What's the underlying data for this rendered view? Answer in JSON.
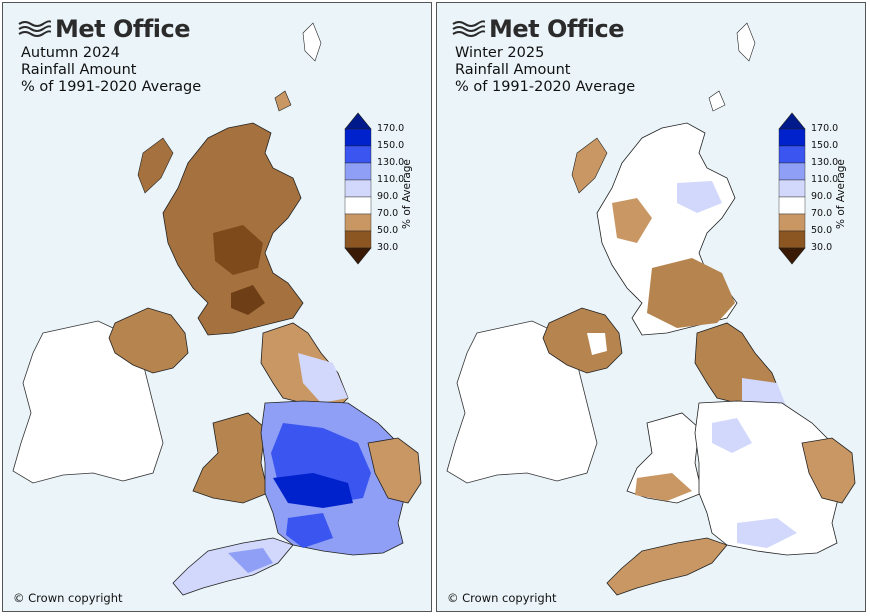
{
  "brand": {
    "name": "Met Office",
    "logo_icon": "met-office-waves-icon"
  },
  "panels": [
    {
      "season": "Autumn 2024",
      "variable": "Rainfall Amount",
      "baseline": "% of 1991-2020 Average"
    },
    {
      "season": "Winter 2025",
      "variable": "Rainfall Amount",
      "baseline": "% of 1991-2020 Average"
    }
  ],
  "legend": {
    "label": "% of Average",
    "ticks": [
      "170.0",
      "150.0",
      "130.0",
      "110.0",
      "90.0",
      "70.0",
      "50.0",
      "30.0"
    ],
    "colors": [
      "#0022cc",
      "#3a55f0",
      "#8f9ff5",
      "#d2d8fb",
      "#ffffff",
      "#c99764",
      "#8c5622",
      "#4a2508"
    ],
    "extend_high_color": "#001a8c",
    "extend_low_color": "#3a1a05"
  },
  "copyright": "© Crown copyright",
  "colors": {
    "sea": "#eaf4f9",
    "ireland": "#ffffff",
    "outline": "#222222"
  }
}
